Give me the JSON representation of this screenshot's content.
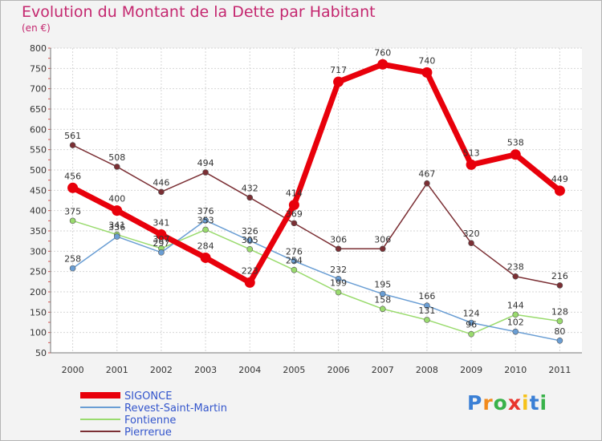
{
  "title": "Evolution du Montant de la Dette par Habitant",
  "unit": "(en €)",
  "logo": {
    "text": "Proxiti",
    "letters": [
      "P",
      "r",
      "o",
      "x",
      "i",
      "t",
      "i"
    ],
    "colors": [
      "#3a7fd5",
      "#f28a1c",
      "#39b24a",
      "#e8352c",
      "#f6c21a",
      "#3a7fd5",
      "#39b24a"
    ]
  },
  "chart_data": {
    "type": "line",
    "title": "Evolution du Montant de la Dette par Habitant",
    "ylabel": "(en €)",
    "categories": [
      "2000",
      "2001",
      "2002",
      "2003",
      "2004",
      "2005",
      "2006",
      "2007",
      "2008",
      "2009",
      "2010",
      "2011"
    ],
    "yticks": [
      50,
      100,
      150,
      200,
      250,
      300,
      350,
      400,
      450,
      500,
      550,
      600,
      650,
      700,
      750,
      800
    ],
    "ylim": [
      50,
      800
    ],
    "grid": true,
    "legend_position": "bottom-left",
    "series": [
      {
        "name": "SIGONCE",
        "color": "#e8000b",
        "values": [
          456,
          400,
          341,
          284,
          223,
          414,
          717,
          760,
          740,
          513,
          538,
          449
        ],
        "labels": [
          "456",
          "400",
          "341",
          "284",
          "223",
          "414",
          "717",
          "760",
          "740",
          "513",
          "538",
          "449"
        ]
      },
      {
        "name": "Revest-Saint-Martin",
        "color": "#6a9ed4",
        "values": [
          258,
          336,
          297,
          376,
          326,
          276,
          232,
          195,
          166,
          124,
          102,
          80
        ],
        "labels": [
          "258",
          "336",
          "297",
          "376",
          "326",
          "276",
          "232",
          "195",
          "166",
          "124",
          "102",
          "80"
        ]
      },
      {
        "name": "Fontienne",
        "color": "#9adb6e",
        "values": [
          375,
          341,
          307,
          353,
          305,
          254,
          199,
          158,
          131,
          96,
          144,
          128
        ],
        "labels": [
          "375",
          "341",
          "307",
          "353",
          "305",
          "254",
          "199",
          "158",
          "131",
          "96",
          "144",
          "128"
        ]
      },
      {
        "name": "Pierrerue",
        "color": "#7b2f34",
        "values": [
          561,
          508,
          446,
          494,
          432,
          369,
          306,
          306,
          467,
          320,
          238,
          216
        ],
        "labels": [
          "561",
          "508",
          "446",
          "494",
          "432",
          "369",
          "306",
          "306",
          "467",
          "320",
          "238",
          "216"
        ]
      }
    ]
  }
}
